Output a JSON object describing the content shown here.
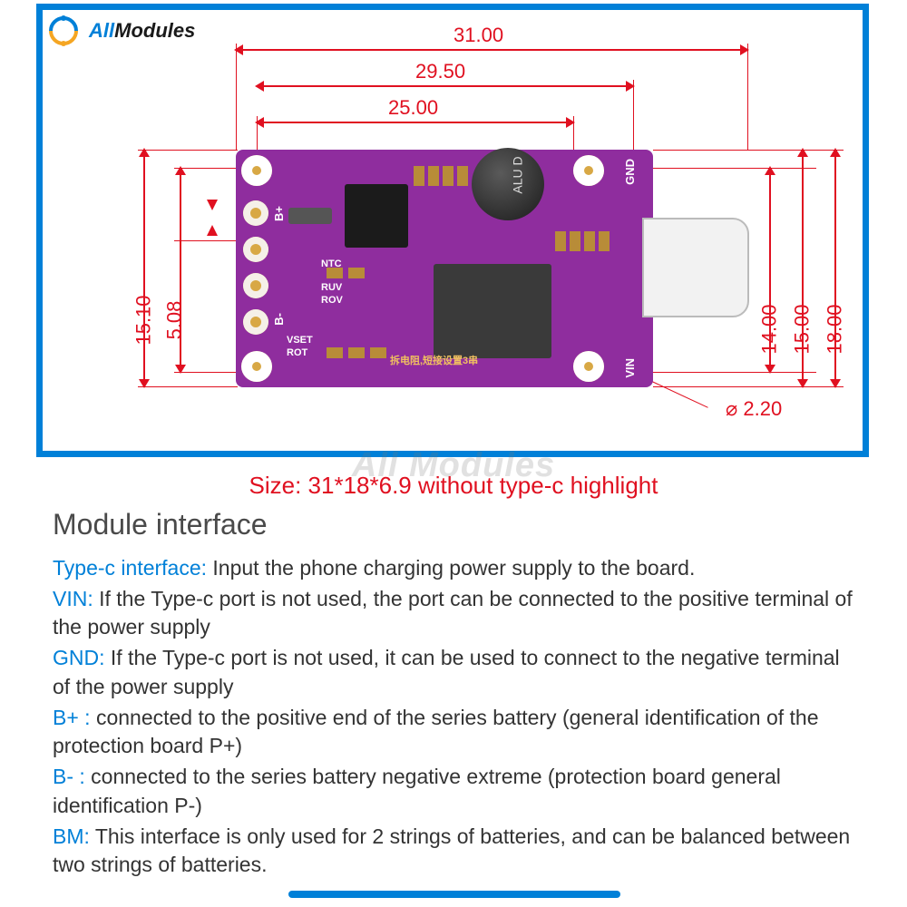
{
  "logo": {
    "all": "All",
    "modules": "Modules"
  },
  "watermark": "All Modules",
  "size_note": "Size: 31*18*6.9 without type-c highlight",
  "heading": "Module interface",
  "dimensions": {
    "top1": "31.00",
    "top2": "29.50",
    "top3": "25.00",
    "left1": "15.10",
    "left2": "5.08",
    "right1": "14.00",
    "right2": "15.00",
    "right3": "18.00",
    "diameter": "⌀ 2.20"
  },
  "pcb_labels": {
    "bplus": "B+",
    "bminus": "B-",
    "gnd": "GND",
    "vin": "VIN",
    "ntc": "NTC",
    "ruv": "RUV",
    "rov": "ROV",
    "vset": "VSET",
    "rot": "ROT",
    "cap": "ALU D",
    "cn": "拆电阻,短接设置3串"
  },
  "interfaces": [
    {
      "term": "Type-c interface:",
      "desc": " Input the phone charging power supply to the board."
    },
    {
      "term": "VIN:",
      "desc": " If the Type-c port is not used, the port can be connected to the positive terminal of the power supply"
    },
    {
      "term": "GND:",
      "desc": " If the Type-c port is not used, it can be used to connect to the negative terminal of the power supply"
    },
    {
      "term": "B+ :",
      "desc": " connected to the positive end of the series battery (general identification of the protection board P+)"
    },
    {
      "term": "B- :",
      "desc": " connected to the series battery negative extreme (protection board general identification P-)"
    },
    {
      "term": "BM:",
      "desc": " This interface is only used for 2 strings of batteries, and can be balanced between two strings of batteries."
    }
  ],
  "colors": {
    "frame": "#0080d8",
    "red": "#e01020",
    "pcb": "#8f2d9e",
    "gold": "#d8a845"
  }
}
